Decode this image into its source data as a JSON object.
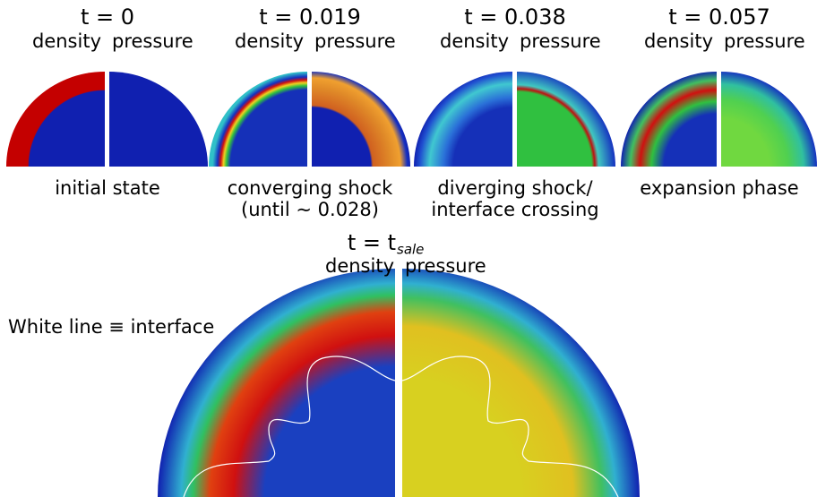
{
  "panels": [
    {
      "time": "t = 0",
      "left": "density",
      "right": "pressure",
      "caption": [
        "initial state"
      ]
    },
    {
      "time": "t = 0.019",
      "left": "density",
      "right": "pressure",
      "caption": [
        "converging shock",
        "(until ∼ 0.028)"
      ]
    },
    {
      "time": "t = 0.038",
      "left": "density",
      "right": "pressure",
      "caption": [
        "diverging shock/",
        "interface crossing"
      ]
    },
    {
      "time": "t = 0.057",
      "left": "density",
      "right": "pressure",
      "caption": [
        "expansion phase"
      ]
    }
  ],
  "final": {
    "time": "t = t",
    "time_sub": "sale",
    "left": "density",
    "right": "pressure"
  },
  "annotation": "White line ≡ interface"
}
